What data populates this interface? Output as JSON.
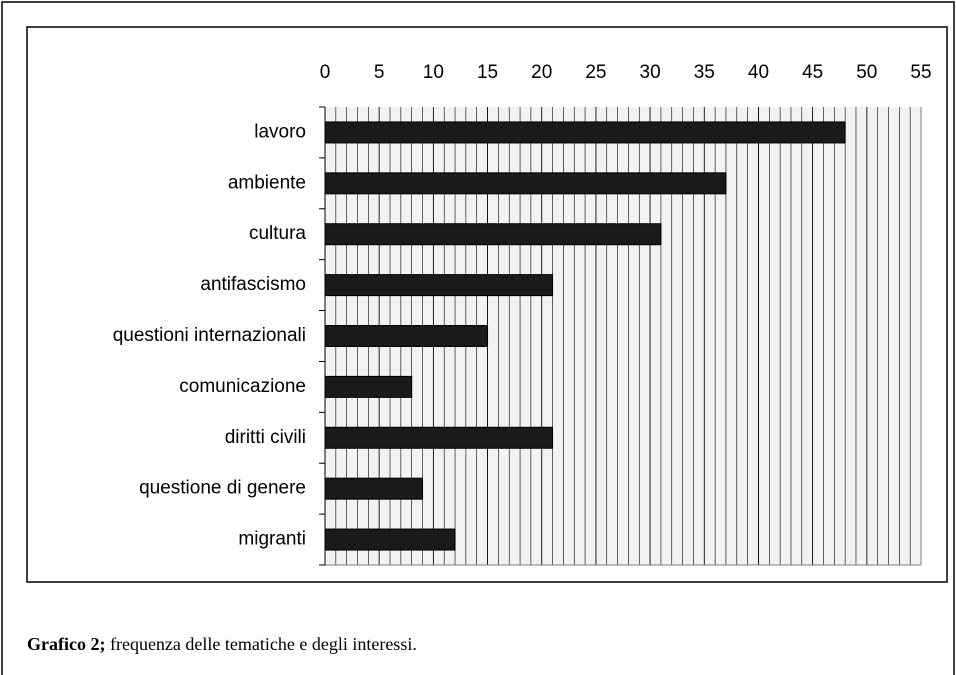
{
  "chart_data": {
    "type": "barh",
    "categories": [
      "lavoro",
      "ambiente",
      "cultura",
      "antifascismo",
      "questioni internazionali",
      "comunicazione",
      "diritti civili",
      "questione di genere",
      "migranti"
    ],
    "values": [
      48,
      37,
      31,
      21,
      15,
      8,
      21,
      9,
      12
    ],
    "color": "#1a1a1a",
    "xlim": [
      0,
      55
    ],
    "xticks": [
      0,
      5,
      10,
      15,
      20,
      25,
      30,
      35,
      40,
      45,
      50,
      55
    ],
    "grid": true,
    "minor_grid_step": 1
  },
  "caption": {
    "label": "Grafico 2;",
    "text": "frequenza delle tematiche e degli interessi."
  }
}
